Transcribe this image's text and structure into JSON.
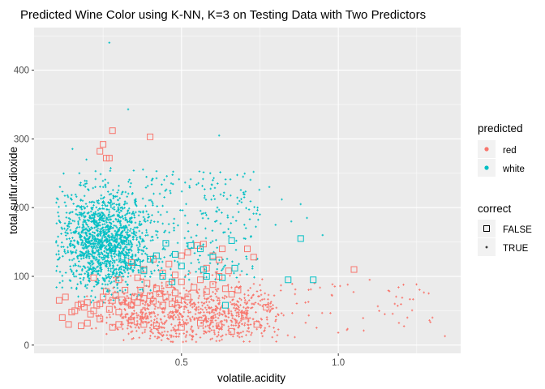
{
  "chart_data": {
    "type": "scatter",
    "title": "Predicted Wine Color using K-NN, K=3 on Testing Data with Two Predictors",
    "xlabel": "volatile.acidity",
    "ylabel": "total.sulfur.dioxide",
    "xlim": [
      0.03,
      1.39
    ],
    "ylim": [
      -12,
      462
    ],
    "x_ticks": [
      0.5,
      1.0
    ],
    "x_tick_labels": [
      "0.5",
      "1.0"
    ],
    "y_ticks": [
      0,
      100,
      200,
      300,
      400
    ],
    "y_tick_labels": [
      "0",
      "100",
      "200",
      "300",
      "400"
    ],
    "grid": true,
    "legend_position": "right",
    "colors": {
      "red": "#F8766D",
      "white": "#00BFC4"
    },
    "legends": [
      {
        "title": "predicted",
        "entries": [
          {
            "label": "red",
            "color": "#F8766D",
            "shape": "circle"
          },
          {
            "label": "white",
            "color": "#00BFC4",
            "shape": "circle"
          }
        ]
      },
      {
        "title": "correct",
        "entries": [
          {
            "label": "FALSE",
            "shape": "open-square"
          },
          {
            "label": "TRUE",
            "shape": "small-plus"
          }
        ]
      }
    ],
    "series": [
      {
        "name": "red",
        "correct": "FALSE",
        "points": [
          [
            0.28,
            312
          ],
          [
            0.4,
            303
          ],
          [
            0.25,
            292
          ],
          [
            0.24,
            282
          ],
          [
            0.26,
            272
          ],
          [
            0.27,
            272
          ],
          [
            0.11,
            65
          ],
          [
            0.13,
            70
          ],
          [
            0.15,
            48
          ],
          [
            0.16,
            50
          ],
          [
            0.17,
            58
          ],
          [
            0.18,
            60
          ],
          [
            0.19,
            55
          ],
          [
            0.2,
            62
          ],
          [
            0.21,
            45
          ],
          [
            0.22,
            50
          ],
          [
            0.23,
            58
          ],
          [
            0.24,
            60
          ],
          [
            0.25,
            70
          ],
          [
            0.26,
            78
          ],
          [
            0.27,
            52
          ],
          [
            0.28,
            65
          ],
          [
            0.29,
            72
          ],
          [
            0.3,
            48
          ],
          [
            0.31,
            66
          ],
          [
            0.32,
            80
          ],
          [
            0.33,
            64
          ],
          [
            0.34,
            58
          ],
          [
            0.35,
            70
          ],
          [
            0.36,
            62
          ],
          [
            0.37,
            80
          ],
          [
            0.38,
            68
          ],
          [
            0.39,
            90
          ],
          [
            0.4,
            72
          ],
          [
            0.41,
            64
          ],
          [
            0.42,
            82
          ],
          [
            0.43,
            75
          ],
          [
            0.44,
            58
          ],
          [
            0.45,
            70
          ],
          [
            0.46,
            88
          ],
          [
            0.47,
            60
          ],
          [
            0.48,
            76
          ],
          [
            0.49,
            66
          ],
          [
            0.5,
            92
          ],
          [
            0.52,
            70
          ],
          [
            0.54,
            84
          ],
          [
            0.56,
            95
          ],
          [
            0.58,
            78
          ],
          [
            0.6,
            88
          ],
          [
            0.62,
            100
          ],
          [
            0.64,
            82
          ],
          [
            0.66,
            74
          ],
          [
            0.68,
            80
          ],
          [
            0.12,
            40
          ],
          [
            0.14,
            30
          ],
          [
            0.18,
            28
          ],
          [
            0.2,
            32
          ],
          [
            0.24,
            38
          ],
          [
            0.28,
            26
          ],
          [
            0.3,
            30
          ],
          [
            0.34,
            36
          ],
          [
            0.38,
            30
          ],
          [
            0.42,
            28
          ],
          [
            0.5,
            26
          ],
          [
            0.56,
            32
          ],
          [
            0.62,
            28
          ],
          [
            0.66,
            20
          ],
          [
            0.7,
            42
          ],
          [
            0.74,
            30
          ],
          [
            0.34,
            120
          ],
          [
            0.38,
            110
          ],
          [
            0.41,
            125
          ],
          [
            0.44,
            105
          ],
          [
            0.46,
            118
          ],
          [
            0.5,
            130
          ],
          [
            0.52,
            135
          ],
          [
            0.55,
            145
          ],
          [
            0.57,
            147
          ],
          [
            0.6,
            130
          ],
          [
            0.62,
            124
          ],
          [
            0.63,
            140
          ],
          [
            0.71,
            140
          ],
          [
            0.73,
            128
          ],
          [
            0.36,
            98
          ],
          [
            0.48,
            102
          ],
          [
            0.58,
            112
          ],
          [
            0.65,
            108
          ],
          [
            1.05,
            110
          ],
          [
            0.77,
            55
          ],
          [
            0.22,
            98
          ],
          [
            0.3,
            95
          ]
        ]
      },
      {
        "name": "white",
        "correct": "FALSE",
        "points": [
          [
            0.88,
            155
          ],
          [
            0.92,
            95
          ],
          [
            0.84,
            95
          ],
          [
            0.66,
            152
          ],
          [
            0.67,
            112
          ],
          [
            0.64,
            58
          ],
          [
            0.56,
            140
          ],
          [
            0.57,
            110
          ],
          [
            0.6,
            128
          ],
          [
            0.53,
            145
          ],
          [
            0.48,
            132
          ],
          [
            0.5,
            115
          ],
          [
            0.45,
            148
          ],
          [
            0.42,
            130
          ],
          [
            0.4,
            125
          ],
          [
            0.36,
            120
          ],
          [
            0.33,
            115
          ],
          [
            0.38,
            108
          ],
          [
            0.44,
            100
          ],
          [
            0.31,
            128
          ],
          [
            0.47,
            92
          ],
          [
            0.28,
            140
          ],
          [
            0.63,
            98
          ],
          [
            0.58,
            100
          ]
        ]
      }
    ]
  }
}
